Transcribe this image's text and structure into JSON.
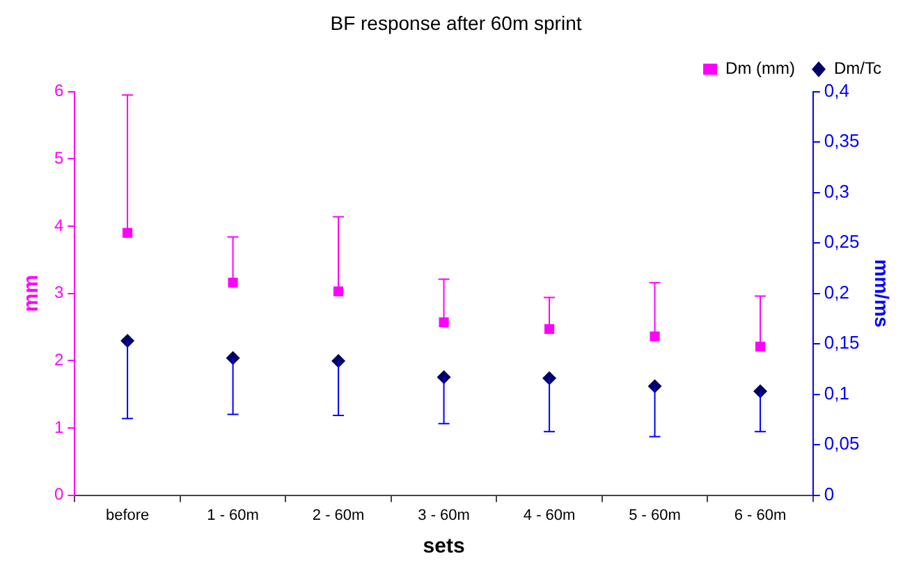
{
  "chart_data": {
    "type": "scatter",
    "title": "BF response after 60m sprint",
    "xlabel": "sets",
    "ylabel": "mm",
    "y2label": "mm/ms",
    "categories": [
      "before",
      "1 - 60m",
      "2 - 60m",
      "3 - 60m",
      "4 - 60m",
      "5 - 60m",
      "6 - 60m"
    ],
    "series": [
      {
        "name": "Dm (mm)",
        "color": "#ff00ff",
        "marker": "square",
        "values": [
          3.9,
          3.16,
          3.03,
          2.57,
          2.47,
          2.36,
          2.21
        ],
        "errors": [
          [
            3.9,
            5.95
          ],
          [
            3.16,
            3.84
          ],
          [
            3.03,
            4.14
          ],
          [
            2.57,
            3.21
          ],
          [
            2.47,
            2.94
          ],
          [
            2.36,
            3.16
          ],
          [
            2.21,
            2.96
          ]
        ]
      },
      {
        "name": "Dm/Tc",
        "color": "#000066",
        "marker": "diamond",
        "axis": "y2",
        "values": [
          0.153,
          0.136,
          0.133,
          0.117,
          0.116,
          0.108,
          0.103
        ],
        "errors": [
          [
            0.076,
            0.153
          ],
          [
            0.08,
            0.136
          ],
          [
            0.079,
            0.133
          ],
          [
            0.071,
            0.117
          ],
          [
            0.063,
            0.116
          ],
          [
            0.058,
            0.108
          ],
          [
            0.063,
            0.103
          ]
        ]
      }
    ],
    "ylim": [
      0,
      6
    ],
    "yticks": [
      0,
      1,
      2,
      3,
      4,
      5,
      6
    ],
    "y2lim": [
      0,
      0.4
    ],
    "y2ticks": [
      0,
      {
        "value": 0.05,
        "label": "0,05"
      },
      {
        "value": 0.1,
        "label": "0,1"
      },
      {
        "value": 0.15,
        "label": "0,15"
      },
      {
        "value": 0.2,
        "label": "0,2"
      },
      {
        "value": 0.25,
        "label": "0,25"
      },
      {
        "value": 0.3,
        "label": "0,3"
      },
      {
        "value": 0.35,
        "label": "0,35"
      },
      {
        "value": 0.4,
        "label": "0,4"
      }
    ],
    "grid": false,
    "legend": "top right"
  }
}
